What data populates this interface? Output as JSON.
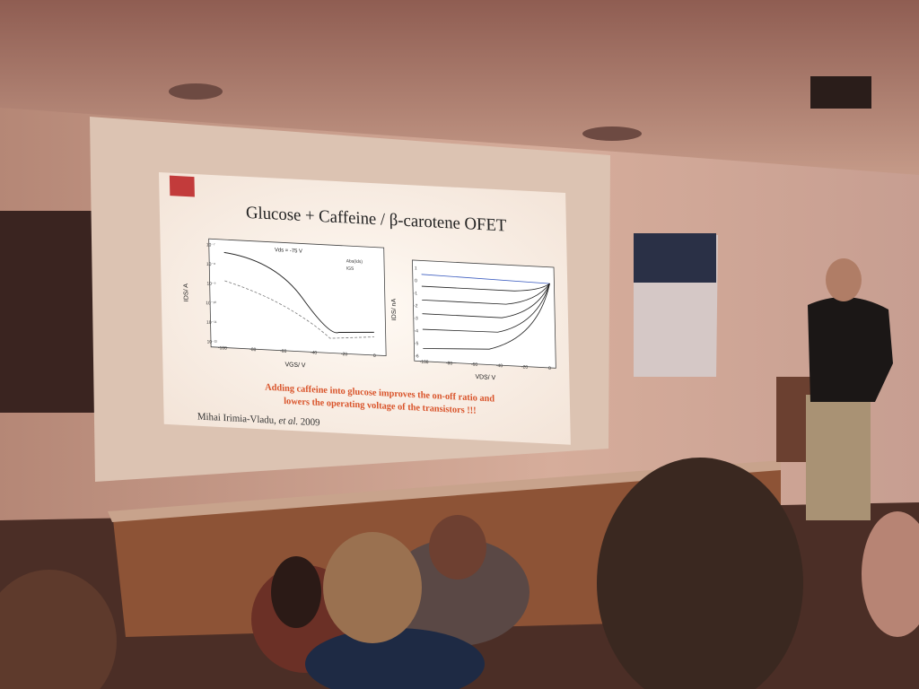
{
  "slide": {
    "title": "Glucose + Caffeine / β-carotene OFET",
    "left_plot": {
      "annotation": "Vds = -75 V",
      "y_label": "IDS/ A",
      "x_label": "VGS/ V",
      "legend": [
        "Abs(Ids)",
        "IGS"
      ],
      "x_ticks": [
        "-100",
        "-80",
        "-60",
        "-40",
        "-20",
        "0"
      ],
      "y_ticks": [
        "10⁻⁷",
        "10⁻⁸",
        "10⁻⁹",
        "10⁻¹⁰",
        "10⁻¹¹",
        "10⁻¹²"
      ]
    },
    "right_plot": {
      "y_label": "IDS/ nA",
      "x_label": "VDS/ V",
      "x_ticks": [
        "-100",
        "-80",
        "-60",
        "-40",
        "-20",
        "0"
      ],
      "y_ticks": [
        "1",
        "0",
        "-1",
        "-2",
        "-3",
        "-4",
        "-5",
        "-6"
      ]
    },
    "caption_lines": [
      "Adding caffeine into glucose improves the on-off ratio and",
      "lowers the operating voltage of the transistors !!!"
    ],
    "author": "Mihai Irimia-Vladu,",
    "author_etal": "et al.",
    "author_year": "2009"
  }
}
